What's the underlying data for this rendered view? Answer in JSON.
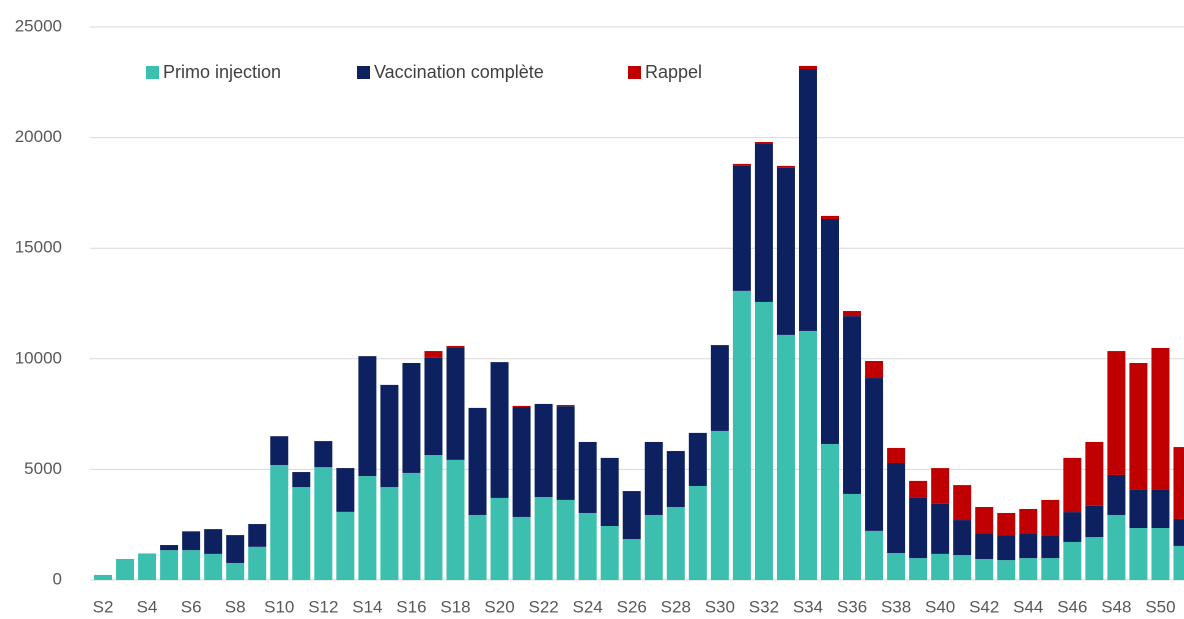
{
  "chart_data": {
    "type": "stacked_bar",
    "categories": [
      "S2",
      null,
      "S4",
      null,
      "S6",
      null,
      "S8",
      null,
      "S10",
      null,
      "S12",
      null,
      "S14",
      null,
      "S16",
      null,
      "S18",
      null,
      "S20",
      null,
      "S22",
      null,
      "S24",
      null,
      "S26",
      null,
      "S28",
      null,
      "S30",
      null,
      "S32",
      null,
      "S34",
      null,
      "S36",
      null,
      "S38",
      null,
      "S40",
      null,
      "S42",
      null,
      "S44",
      null,
      "S46",
      null,
      "S48",
      null,
      "S50",
      null
    ],
    "series": [
      {
        "name": "Primo injection",
        "color": "#3cbfae",
        "values": [
          230,
          950,
          1200,
          1350,
          1350,
          1180,
          770,
          1500,
          5200,
          4200,
          5100,
          3080,
          4700,
          4200,
          4840,
          5650,
          5430,
          2940,
          3710,
          2850,
          3750,
          3620,
          3030,
          2440,
          1850,
          2940,
          3300,
          4250,
          6740,
          13070,
          12570,
          11080,
          11260,
          6150,
          3890,
          2220,
          1220,
          990,
          1180,
          1130,
          950,
          900,
          990,
          990,
          1720,
          1940,
          2940,
          2350,
          2350,
          1540
        ]
      },
      {
        "name": "Vaccination complète",
        "color": "#0d2160",
        "values": [
          0,
          0,
          0,
          230,
          850,
          1120,
          1260,
          1030,
          1300,
          680,
          1180,
          1980,
          5420,
          4620,
          4970,
          4390,
          5060,
          4840,
          6140,
          4970,
          4210,
          4240,
          3210,
          3080,
          2170,
          3300,
          2530,
          2400,
          3880,
          5650,
          7140,
          7550,
          11840,
          10170,
          8040,
          6910,
          4070,
          2720,
          2260,
          1580,
          1130,
          1130,
          1090,
          1000,
          1350,
          1410,
          1810,
          1720,
          1720,
          1220
        ]
      },
      {
        "name": "Rappel",
        "color": "#c00000",
        "values": [
          0,
          0,
          0,
          0,
          0,
          0,
          0,
          0,
          0,
          0,
          0,
          0,
          0,
          0,
          0,
          310,
          90,
          0,
          0,
          50,
          0,
          50,
          0,
          0,
          0,
          0,
          0,
          0,
          0,
          90,
          90,
          90,
          140,
          140,
          230,
          770,
          680,
          770,
          1620,
          1580,
          1220,
          1000,
          1130,
          1630,
          2450,
          2890,
          5600,
          5740,
          6420,
          3250
        ]
      }
    ],
    "ylim": [
      0,
      25000
    ],
    "yticks": [
      0,
      5000,
      10000,
      15000,
      20000,
      25000
    ],
    "grid": true,
    "legend": "top-left"
  }
}
